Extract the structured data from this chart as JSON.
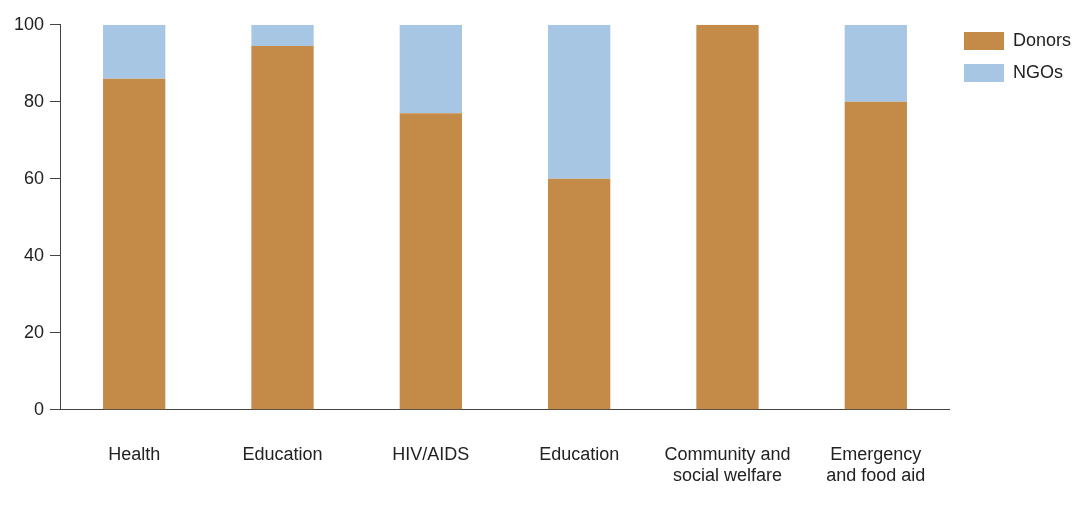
{
  "chart_data": {
    "type": "bar",
    "stacked": true,
    "categories": [
      "Health",
      "Education",
      "HIV/AIDS",
      "Education",
      "Community and social welfare",
      "Emergency and food aid"
    ],
    "series": [
      {
        "name": "Donors",
        "color": "#c48a48",
        "values": [
          86,
          94.5,
          77,
          60,
          100,
          80
        ]
      },
      {
        "name": "NGOs",
        "color": "#a7c6e4",
        "values": [
          14,
          5.5,
          23,
          40,
          0,
          20
        ]
      }
    ],
    "ylim": [
      0,
      100
    ],
    "yticks": [
      0,
      20,
      40,
      60,
      80,
      100
    ],
    "grid": false,
    "legend": "top right"
  }
}
